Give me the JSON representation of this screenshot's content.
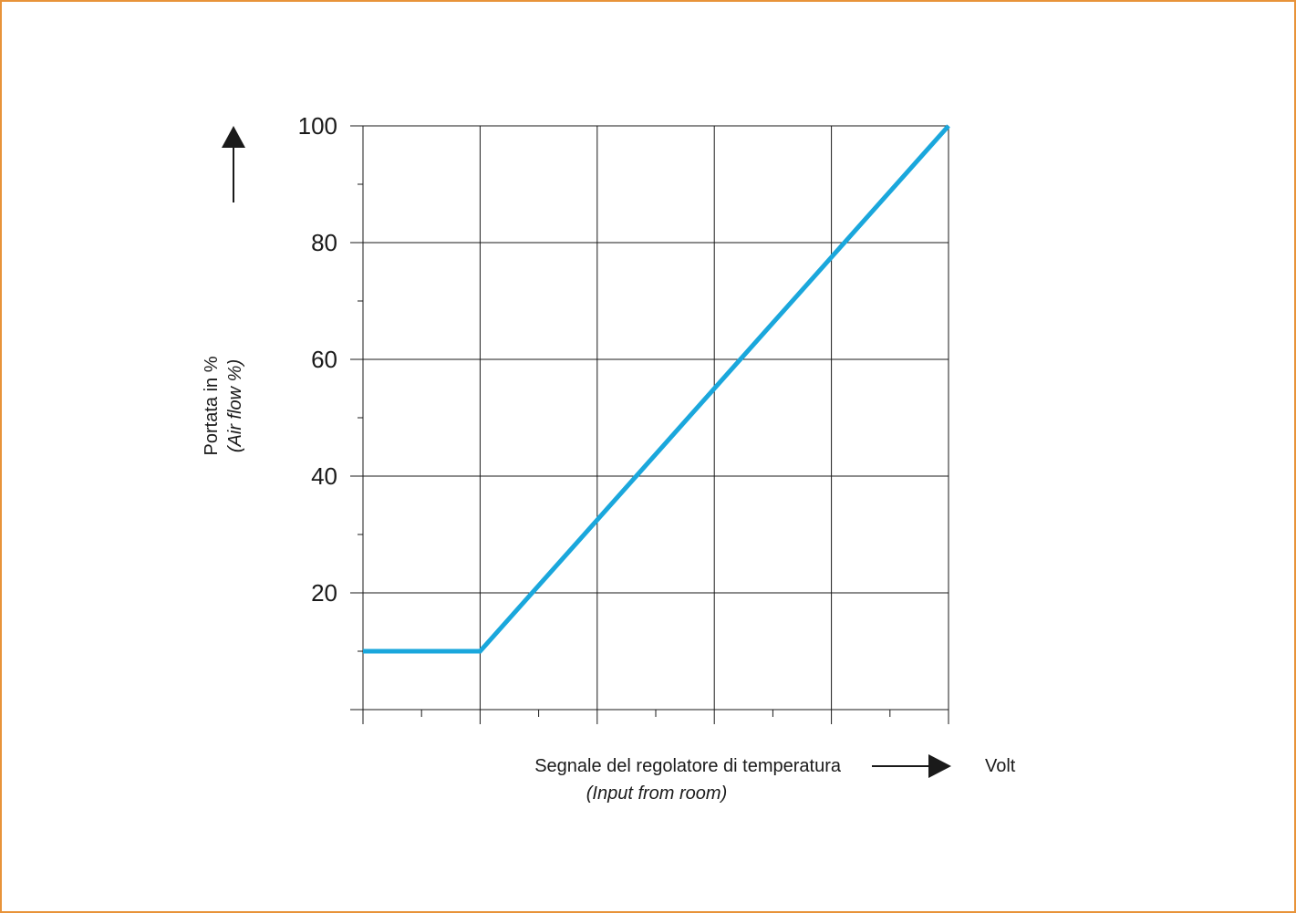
{
  "chart_data": {
    "type": "line",
    "ylabel": "Portata in %",
    "ylabel_secondary": "(Air flow %)",
    "xlabel": "Segnale del regolatore di temperatura",
    "xlabel_secondary": "(Input from room)",
    "x_unit": "Volt",
    "ylim": [
      0,
      100
    ],
    "y_ticks": [
      20,
      40,
      60,
      80,
      100
    ],
    "x_gridlines": 5,
    "grid": true,
    "series": [
      {
        "points": [
          [
            0,
            10
          ],
          [
            1,
            10
          ],
          [
            5,
            100
          ]
        ],
        "color": "#1aa7dc"
      }
    ],
    "colors": {
      "border": "#e8933a",
      "line": "#1aa7dc",
      "axis": "#1a1a1a"
    }
  }
}
